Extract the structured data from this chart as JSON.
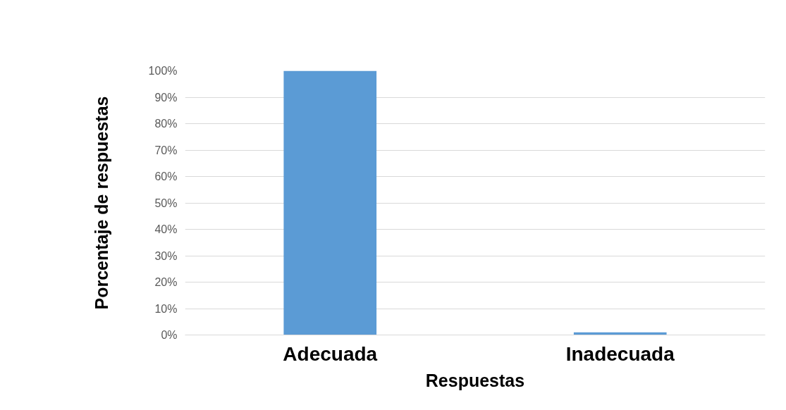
{
  "chart_data": {
    "type": "bar",
    "xlabel": "Respuestas",
    "ylabel": "Porcentaje de respuestas",
    "categories": [
      "Adecuada",
      "Inadecuada"
    ],
    "values": [
      100,
      1
    ],
    "color": "#5b9bd5",
    "ylim": [
      0,
      100
    ],
    "yticks": [
      {
        "value": 0,
        "label": "0%"
      },
      {
        "value": 10,
        "label": "10%"
      },
      {
        "value": 20,
        "label": "20%"
      },
      {
        "value": 30,
        "label": "30%"
      },
      {
        "value": 40,
        "label": "40%"
      },
      {
        "value": 50,
        "label": "50%"
      },
      {
        "value": 60,
        "label": "60%"
      },
      {
        "value": 70,
        "label": "70%"
      },
      {
        "value": 80,
        "label": "80%"
      },
      {
        "value": 90,
        "label": "90%"
      },
      {
        "value": 100,
        "label": "100%"
      }
    ],
    "grid": "y"
  }
}
